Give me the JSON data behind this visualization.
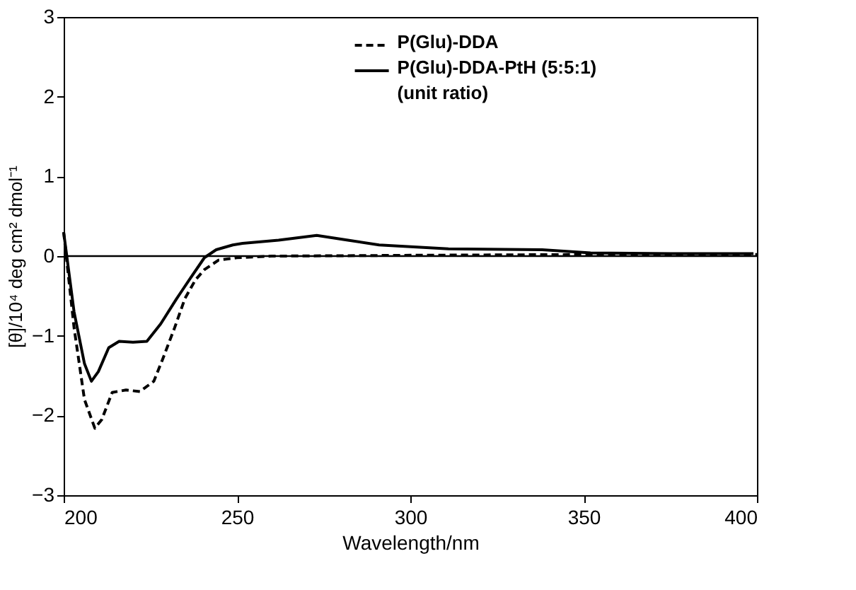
{
  "chart_data": {
    "type": "line",
    "xlabel": "Wavelength/nm",
    "ylabel": "[θ]/10⁴ deg cm² dmol⁻¹",
    "xlim": [
      200,
      400
    ],
    "xticks": [
      200,
      250,
      300,
      350,
      400
    ],
    "ylim": [
      -3,
      3
    ],
    "yticks": [
      -3,
      -2,
      -1,
      0,
      1,
      2,
      3
    ],
    "grid": false,
    "legend": "top right",
    "marker": "none",
    "ref_lines": [
      {
        "axis": "y",
        "value": 0,
        "color": "#000000",
        "line_style": "solid"
      }
    ],
    "series": [
      {
        "name": "P(Glu)-DDA",
        "color": "#000000",
        "line_style": "dashed",
        "x": [
          200,
          203,
          206,
          209,
          211,
          214,
          218,
          222,
          226,
          228.5,
          232,
          235,
          238,
          240.6,
          244.7,
          250,
          260,
          300,
          350,
          400
        ],
        "values": [
          0.3,
          -0.9,
          -1.8,
          -2.16,
          -2.05,
          -1.71,
          -1.68,
          -1.7,
          -1.57,
          -1.3,
          -0.9,
          -0.53,
          -0.3,
          -0.17,
          -0.05,
          -0.02,
          0.0,
          0.01,
          0.02,
          0.02
        ]
      },
      {
        "name": "P(Glu)-DDA-PtH (5:5:1)\n(unit ratio)",
        "color": "#000000",
        "line_style": "solid",
        "x": [
          200,
          203,
          206,
          208,
          210,
          213,
          216,
          220,
          224,
          228,
          232.5,
          236.5,
          240.6,
          244,
          248.8,
          251.6,
          262,
          273,
          282,
          291,
          311,
          338,
          352,
          375,
          399
        ],
        "values": [
          0.3,
          -0.7,
          -1.35,
          -1.57,
          -1.45,
          -1.15,
          -1.07,
          -1.08,
          -1.07,
          -0.85,
          -0.54,
          -0.28,
          -0.02,
          0.08,
          0.14,
          0.16,
          0.2,
          0.26,
          0.2,
          0.14,
          0.09,
          0.08,
          0.04,
          0.03,
          0.03
        ]
      }
    ]
  }
}
